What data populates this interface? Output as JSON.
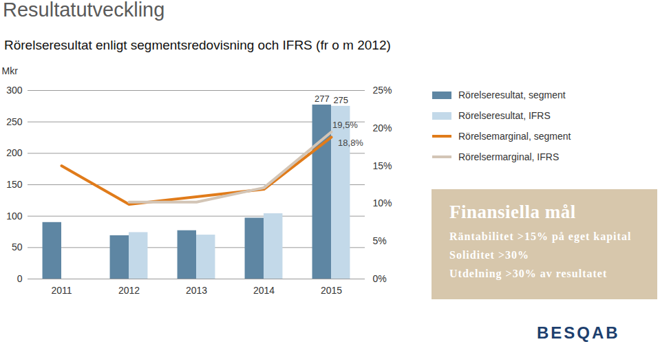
{
  "heading": "Resultatutveckling",
  "logo": "BESQAB",
  "goals": {
    "title": "Finansiella mål",
    "items": [
      "Räntabilitet >15% på eget kapital",
      "Soliditet >30%",
      "Utdelning >30% av resultatet"
    ]
  },
  "chart_data": {
    "type": "bar",
    "title": "Rörelseresultat enligt segmentsredovisning och IFRS (fr o m 2012)",
    "y_label": "Mkr",
    "categories": [
      "2011",
      "2012",
      "2013",
      "2014",
      "2015"
    ],
    "ylim": [
      0,
      300
    ],
    "yticks": [
      0,
      50,
      100,
      150,
      200,
      250,
      300
    ],
    "y2lim": [
      0,
      25
    ],
    "y2ticks": [
      {
        "value": 0,
        "label": "0%"
      },
      {
        "value": 5,
        "label": "5%"
      },
      {
        "value": 10,
        "label": "10%"
      },
      {
        "value": 15,
        "label": "15%"
      },
      {
        "value": 20,
        "label": "20%"
      },
      {
        "value": 25,
        "label": "25%"
      }
    ],
    "grid": true,
    "legend": "right",
    "data_labels": true,
    "series": [
      {
        "name": "Rörelseresultat, segment",
        "type": "bar",
        "color": "#5e86a3",
        "values": [
          90,
          69,
          77,
          97,
          277
        ],
        "value_labels": [
          null,
          null,
          null,
          null,
          "277"
        ]
      },
      {
        "name": "Rörelseresultat, IFRS",
        "type": "bar",
        "color": "#c3d9e9",
        "values": [
          null,
          74,
          70,
          104,
          275
        ],
        "value_labels": [
          null,
          null,
          null,
          null,
          "275"
        ]
      },
      {
        "name": "Rörelsemarginal, segment",
        "type": "line",
        "axis": "y2",
        "color": "#e07b1a",
        "values": [
          15.0,
          9.9,
          10.9,
          11.9,
          18.8
        ],
        "value_labels": [
          null,
          null,
          null,
          null,
          "18,8%"
        ]
      },
      {
        "name": "Rörelsermarginal, IFRS",
        "type": "line",
        "axis": "y2",
        "color": "#d3c5b6",
        "values": [
          null,
          10.2,
          10.2,
          12.1,
          19.5
        ],
        "value_labels": [
          null,
          null,
          null,
          null,
          "19,5%"
        ]
      }
    ]
  }
}
